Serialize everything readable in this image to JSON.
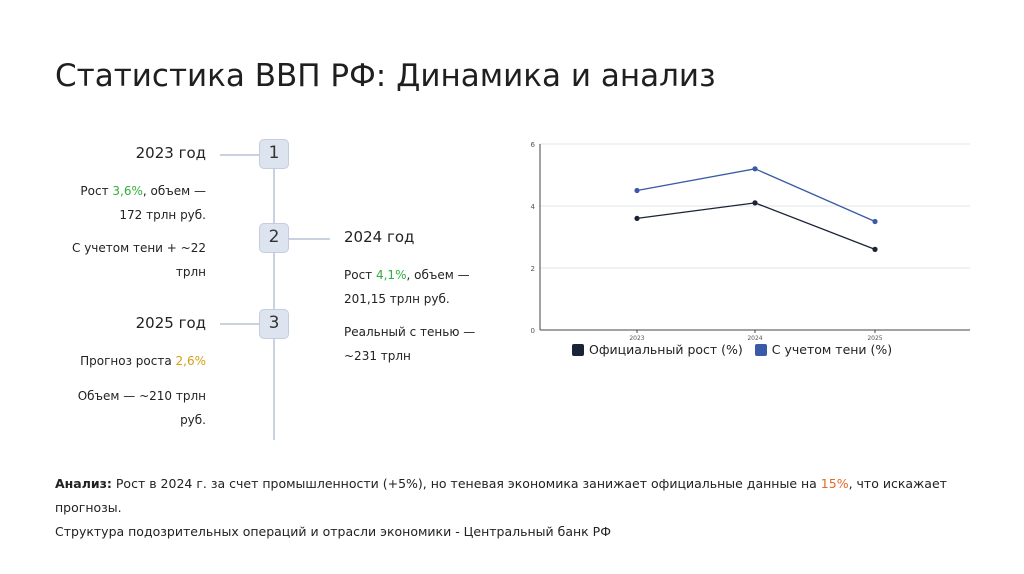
{
  "title": "Статистика ВВП РФ: Динамика и анализ",
  "timeline": [
    {
      "number": "1",
      "year": "2023 год",
      "growth_prefix": "Рост ",
      "growth_value": "3,6%",
      "growth_suffix": ", объем —",
      "volume": "172 трлн руб.",
      "shadow_line1": "С учетом тени + ~22",
      "shadow_line2": "трлн"
    },
    {
      "number": "2",
      "year": "2024 год",
      "growth_prefix": "Рост ",
      "growth_value": "4,1%",
      "growth_suffix": ", объем —",
      "volume": "201,15 трлн руб.",
      "shadow_line1": "Реальный с тенью —",
      "shadow_line2": "~231 трлн"
    },
    {
      "number": "3",
      "year": "2025 год",
      "forecast_prefix": "Прогноз роста ",
      "forecast_value": "2,6%",
      "volume_line1": "Объем — ~210 трлн",
      "volume_line2": "руб."
    }
  ],
  "chart_data": {
    "type": "line",
    "x": [
      "2023",
      "2024",
      "2025"
    ],
    "series": [
      {
        "name": "Официальный рост (%)",
        "values": [
          3.6,
          4.1,
          2.6
        ],
        "color": "#1b2338"
      },
      {
        "name": "С учетом тени (%)",
        "values": [
          4.5,
          5.2,
          3.5
        ],
        "color": "#3a5aa8"
      }
    ],
    "ylim": [
      0,
      6
    ],
    "yticks": [
      "0",
      "2",
      "4",
      "6"
    ],
    "grid": true,
    "legend": "bottom"
  },
  "analysis": {
    "label": "Анализ:",
    "text1": " Рост в 2024 г. за счет промышленности (+5%), но теневая экономика занижает официальные данные на ",
    "highlight": "15%",
    "text2": ", что искажает прогнозы.",
    "source": "Структура подозрительных операций и отрасли экономики - Центральный банк РФ"
  }
}
